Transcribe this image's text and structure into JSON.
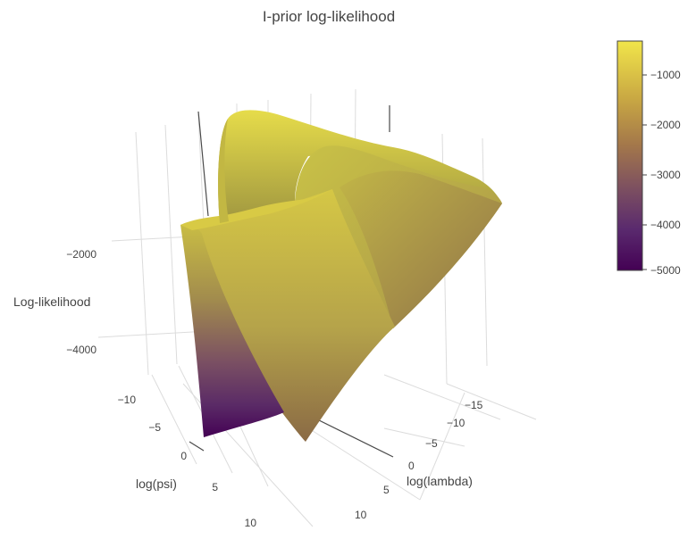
{
  "chart_data": {
    "type": "surface3d",
    "title": "I-prior log-likelihood",
    "axes": {
      "x": {
        "label": "log(psi)",
        "ticks": [
          -10,
          -5,
          0,
          5,
          10
        ]
      },
      "y": {
        "label": "log(lambda)",
        "ticks": [
          -15,
          -10,
          -5,
          0,
          5,
          10
        ]
      },
      "z": {
        "label": "Log-likelihood",
        "ticks": [
          -2000,
          -4000
        ]
      }
    },
    "tick_labels": {
      "x": [
        "−10",
        "−5",
        "0",
        "5",
        "10"
      ],
      "y": [
        "−15",
        "−10",
        "−5",
        "0",
        "5",
        "10"
      ],
      "z": [
        "−2000",
        "−4000"
      ],
      "colorbar": [
        "−1000",
        "−2000",
        "−3000",
        "−4000",
        "−5000"
      ]
    },
    "colorscale": {
      "name": "viridis",
      "range": [
        -5000,
        -300
      ],
      "ticks": [
        -1000,
        -2000,
        -3000,
        -4000,
        -5000
      ],
      "colors": [
        "#440154",
        "#472c7a",
        "#3b518b",
        "#2c718e",
        "#21908d",
        "#27ad81",
        "#5cc863",
        "#aadc32",
        "#fde725"
      ]
    },
    "grid": true
  }
}
